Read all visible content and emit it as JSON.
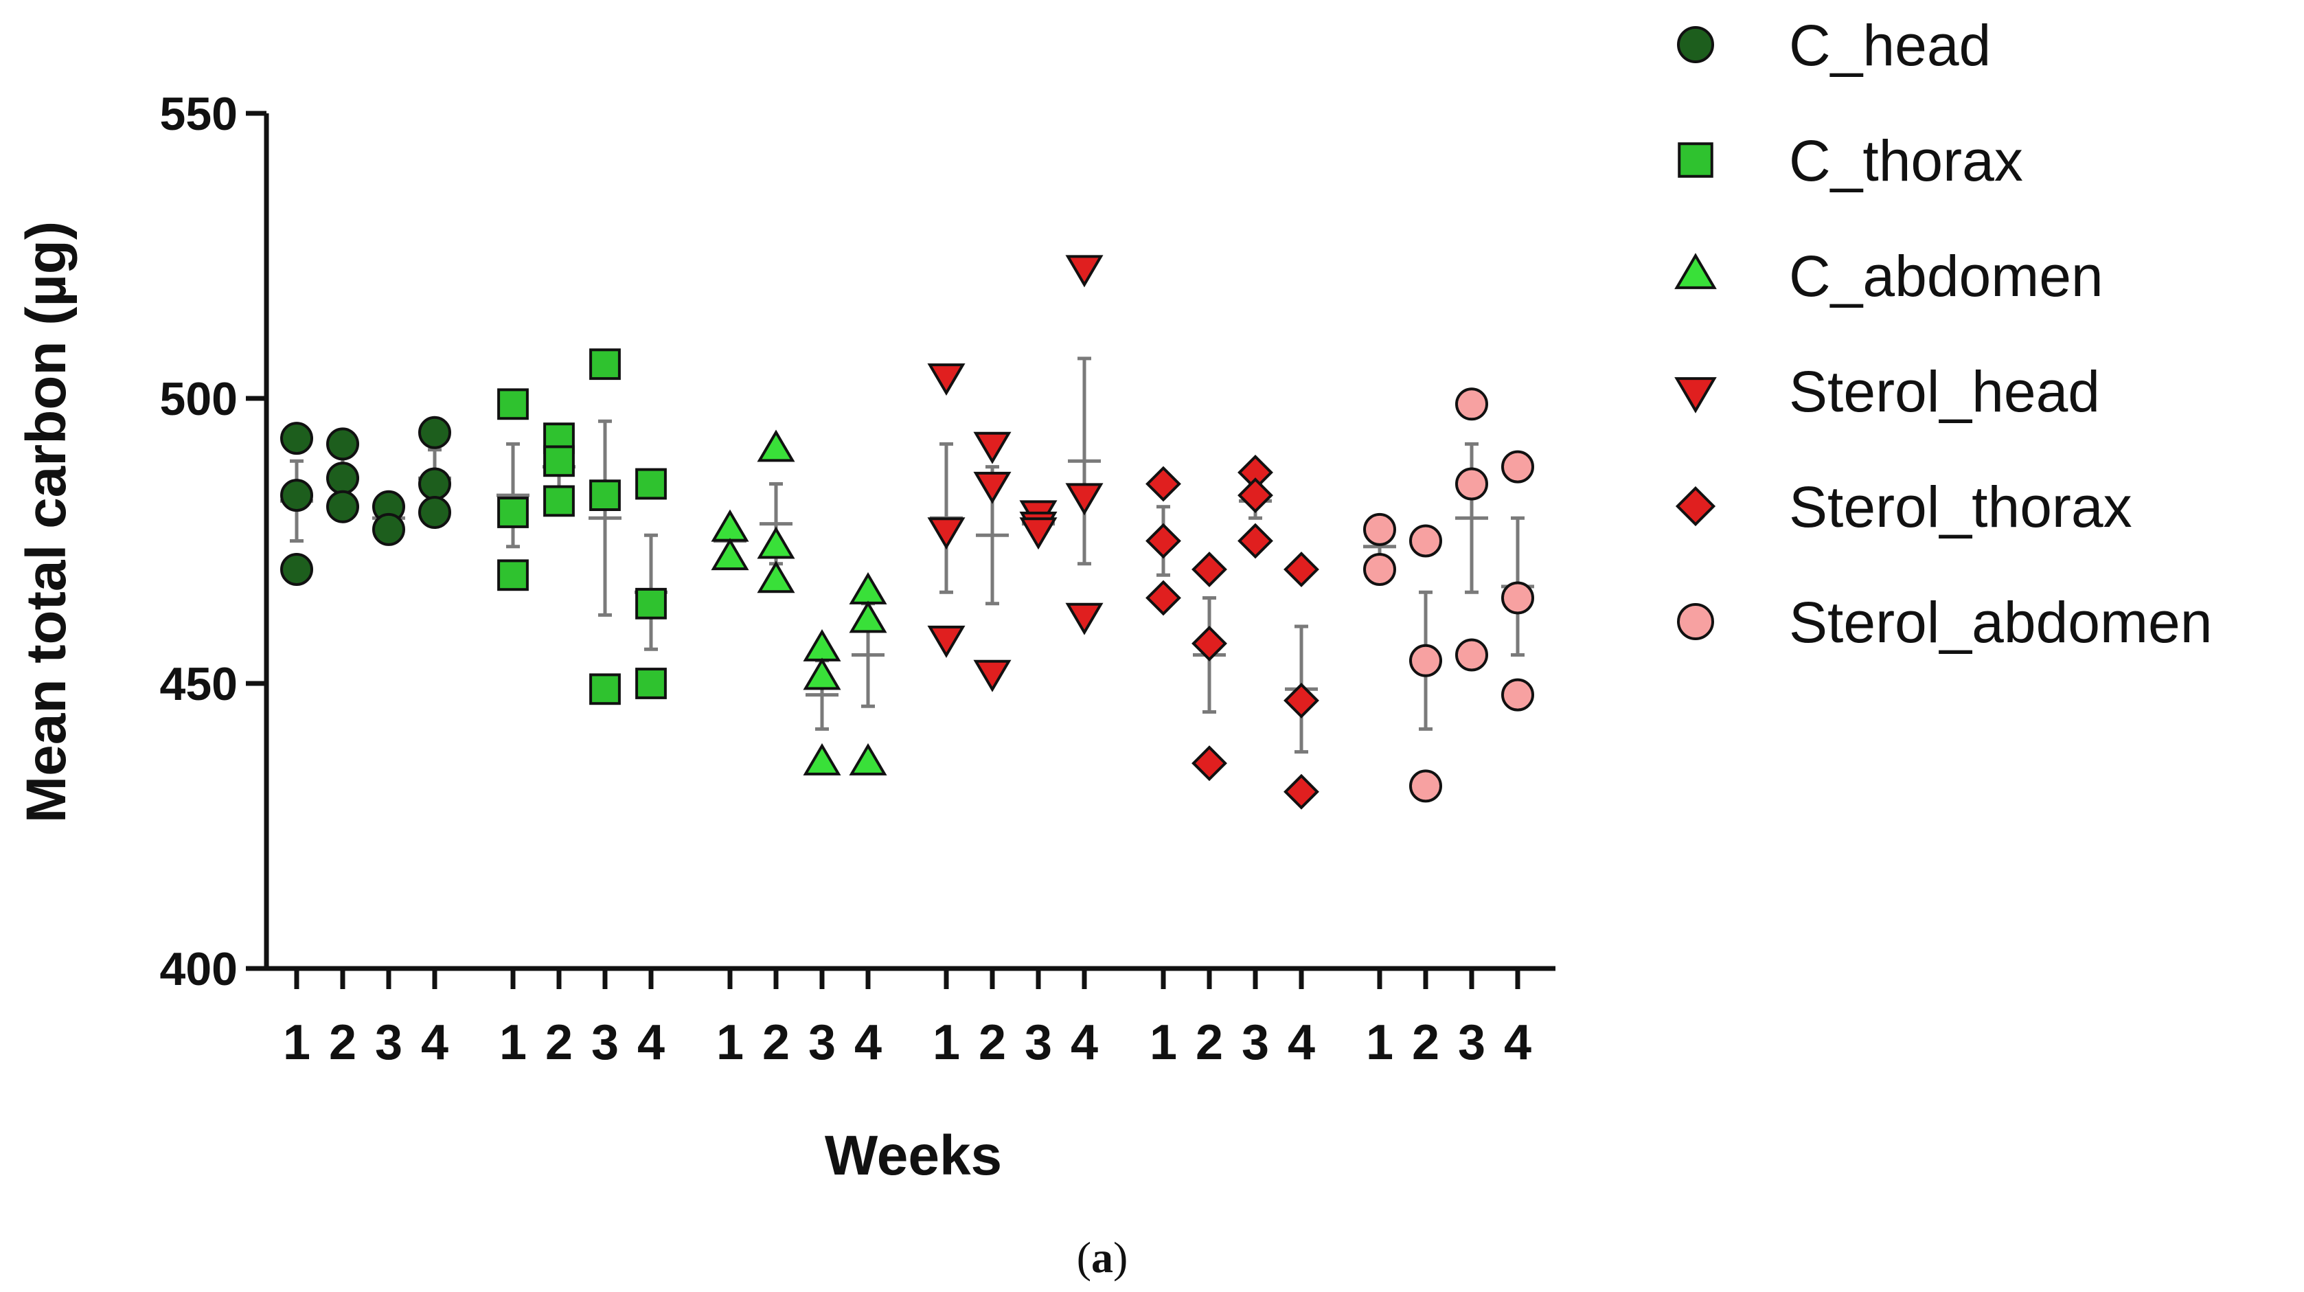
{
  "chart_data": {
    "type": "scatter",
    "title": "",
    "xlabel": "Weeks",
    "ylabel": "Mean total carbon (µg)",
    "ylim": [
      400,
      550
    ],
    "yticks": [
      400,
      450,
      500,
      550
    ],
    "groups_per_series": [
      "1",
      "2",
      "3",
      "4"
    ],
    "caption": "(a)",
    "caption_letter": "a",
    "series": [
      {
        "name": "C_head",
        "marker": "circle",
        "fill": "#1d5e1d",
        "points": [
          {
            "week": 1,
            "values": [
              493,
              483,
              470
            ]
          },
          {
            "week": 2,
            "values": [
              492,
              486,
              481
            ]
          },
          {
            "week": 3,
            "values": [
              481,
              477
            ]
          },
          {
            "week": 4,
            "values": [
              494,
              485,
              480
            ]
          }
        ],
        "summary": [
          {
            "week": 1,
            "mean": 482,
            "err": 7
          },
          {
            "week": 2,
            "mean": 486,
            "err": 4
          },
          {
            "week": 3,
            "mean": 479,
            "err": 3
          },
          {
            "week": 4,
            "mean": 486,
            "err": 5
          }
        ]
      },
      {
        "name": "C_thorax",
        "marker": "square",
        "fill": "#2fc22f",
        "points": [
          {
            "week": 1,
            "values": [
              499,
              480,
              469
            ]
          },
          {
            "week": 2,
            "values": [
              493,
              489,
              482
            ]
          },
          {
            "week": 3,
            "values": [
              506,
              483,
              449
            ]
          },
          {
            "week": 4,
            "values": [
              485,
              464,
              450
            ]
          }
        ],
        "summary": [
          {
            "week": 1,
            "mean": 483,
            "err": 9
          },
          {
            "week": 2,
            "mean": 488,
            "err": 4
          },
          {
            "week": 3,
            "mean": 479,
            "err": 17
          },
          {
            "week": 4,
            "mean": 466,
            "err": 10
          }
        ]
      },
      {
        "name": "C_abdomen",
        "marker": "triangle-up",
        "fill": "#39e039",
        "points": [
          {
            "week": 1,
            "values": [
              477,
              472
            ]
          },
          {
            "week": 2,
            "values": [
              491,
              474,
              468
            ]
          },
          {
            "week": 3,
            "values": [
              456,
              451,
              436
            ]
          },
          {
            "week": 4,
            "values": [
              466,
              461,
              436
            ]
          }
        ],
        "summary": [
          {
            "week": 1,
            "mean": 475,
            "err": 2
          },
          {
            "week": 2,
            "mean": 478,
            "err": 7
          },
          {
            "week": 3,
            "mean": 448,
            "err": 6
          },
          {
            "week": 4,
            "mean": 455,
            "err": 9
          }
        ]
      },
      {
        "name": "Sterol_head",
        "marker": "triangle-down",
        "fill": "#e01f1f",
        "points": [
          {
            "week": 1,
            "values": [
              504,
              477,
              458
            ]
          },
          {
            "week": 2,
            "values": [
              492,
              485,
              452
            ]
          },
          {
            "week": 3,
            "values": [
              480,
              478,
              477
            ]
          },
          {
            "week": 4,
            "values": [
              523,
              483,
              462
            ]
          }
        ],
        "summary": [
          {
            "week": 1,
            "mean": 479,
            "err": 13
          },
          {
            "week": 2,
            "mean": 476,
            "err": 12
          },
          {
            "week": 3,
            "mean": 478,
            "err": 1
          },
          {
            "week": 4,
            "mean": 489,
            "err": 18
          }
        ]
      },
      {
        "name": "Sterol_thorax",
        "marker": "diamond",
        "fill": "#e01f1f",
        "points": [
          {
            "week": 1,
            "values": [
              485,
              475,
              465
            ]
          },
          {
            "week": 2,
            "values": [
              470,
              457,
              436
            ]
          },
          {
            "week": 3,
            "values": [
              487,
              483,
              475
            ]
          },
          {
            "week": 4,
            "values": [
              470,
              447,
              431
            ]
          }
        ],
        "summary": [
          {
            "week": 1,
            "mean": 475,
            "err": 6
          },
          {
            "week": 2,
            "mean": 455,
            "err": 10
          },
          {
            "week": 3,
            "mean": 482,
            "err": 3
          },
          {
            "week": 4,
            "mean": 449,
            "err": 11
          }
        ]
      },
      {
        "name": "Sterol_abdomen",
        "marker": "circle",
        "fill": "#f7a1a1",
        "points": [
          {
            "week": 1,
            "values": [
              477,
              470
            ]
          },
          {
            "week": 2,
            "values": [
              475,
              454,
              432
            ]
          },
          {
            "week": 3,
            "values": [
              499,
              485,
              455
            ]
          },
          {
            "week": 4,
            "values": [
              488,
              465,
              448
            ]
          }
        ],
        "summary": [
          {
            "week": 1,
            "mean": 474,
            "err": 2
          },
          {
            "week": 2,
            "mean": 454,
            "err": 12
          },
          {
            "week": 3,
            "mean": 479,
            "err": 13
          },
          {
            "week": 4,
            "mean": 467,
            "err": 12
          }
        ]
      }
    ]
  }
}
